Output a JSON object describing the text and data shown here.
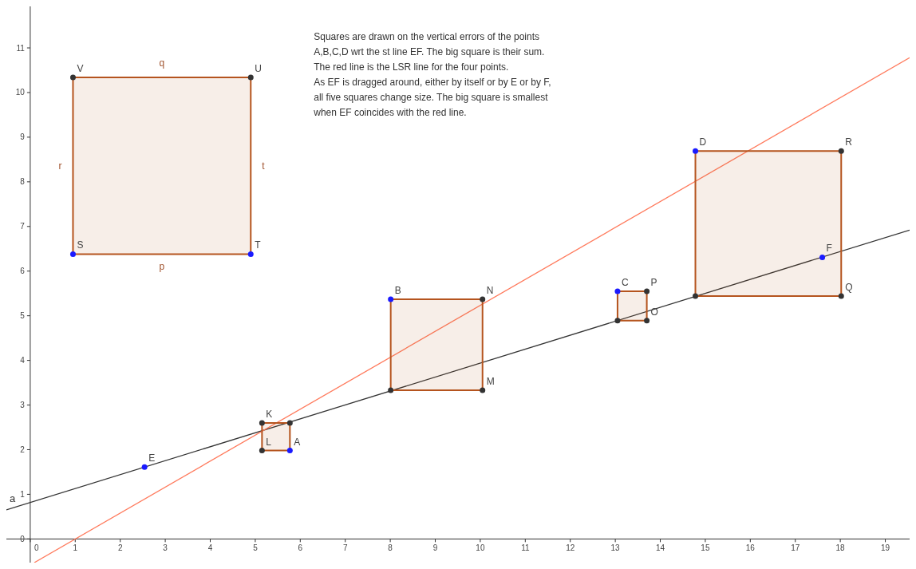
{
  "chart_data": {
    "type": "line",
    "xlim": [
      -0.53,
      19.54
    ],
    "ylim": [
      -0.53,
      11.93
    ],
    "xticks": [
      0,
      1,
      2,
      3,
      4,
      5,
      6,
      7,
      8,
      9,
      10,
      11,
      12,
      13,
      14,
      15,
      16,
      17,
      18,
      19
    ],
    "yticks": [
      0,
      1,
      2,
      3,
      4,
      5,
      6,
      7,
      8,
      9,
      10,
      11
    ],
    "line_style": "solid",
    "series": [
      {
        "name": "a",
        "color": "#333333",
        "x": [
          -0.53,
          19.54
        ],
        "values": [
          0.65,
          6.92
        ]
      },
      {
        "type": "line",
        "color": "#ff7a5c",
        "x": [
          0.09,
          19.54
        ],
        "values": [
          -0.53,
          10.78
        ]
      },
      {
        "type": "area",
        "color": "#b5541e",
        "x": [
          5.15,
          5.77,
          5.77,
          5.15,
          5.15
        ],
        "values": [
          2.6,
          2.6,
          1.98,
          1.98,
          2.6
        ]
      },
      {
        "type": "area",
        "color": "#b5541e",
        "x": [
          8.01,
          10.05,
          10.05,
          8.01,
          8.01
        ],
        "values": [
          5.37,
          5.37,
          3.33,
          3.33,
          5.37
        ]
      },
      {
        "type": "area",
        "color": "#b5541e",
        "x": [
          13.05,
          13.7,
          13.7,
          13.05,
          13.05
        ],
        "values": [
          5.55,
          5.55,
          4.89,
          4.89,
          5.55
        ]
      },
      {
        "type": "area",
        "color": "#b5541e",
        "x": [
          14.78,
          18.02,
          18.02,
          14.78,
          14.78
        ],
        "values": [
          8.69,
          8.69,
          5.44,
          5.44,
          8.69
        ]
      },
      {
        "type": "area",
        "color": "#b5541e",
        "x": [
          0.95,
          4.9,
          4.9,
          0.95,
          0.95
        ],
        "values": [
          10.34,
          10.34,
          6.38,
          6.38,
          10.34
        ]
      },
      {
        "type": "scatter",
        "marker": "circle",
        "x": [
          5.77,
          8.01,
          13.05,
          14.78,
          2.54,
          17.6,
          0.95,
          4.9,
          5.15,
          5.77,
          5.15,
          10.05,
          10.05,
          8.01,
          13.7,
          13.7,
          13.05,
          18.02,
          18.02,
          14.78,
          0.95,
          4.9
        ],
        "values": [
          1.98,
          5.37,
          5.55,
          8.69,
          1.61,
          6.31,
          6.38,
          6.38,
          2.6,
          2.6,
          1.98,
          5.37,
          3.33,
          3.33,
          5.55,
          4.89,
          4.89,
          8.69,
          5.44,
          5.44,
          10.34,
          10.34
        ],
        "colors": [
          "#1a1aff",
          "#1a1aff",
          "#1a1aff",
          "#1a1aff",
          "#1a1aff",
          "#1a1aff",
          "#1a1aff",
          "#1a1aff",
          "#333333",
          "#333333",
          "#333333",
          "#333333",
          "#333333",
          "#333333",
          "#333333",
          "#333333",
          "#333333",
          "#333333",
          "#333333",
          "#333333",
          "#333333",
          "#333333"
        ]
      }
    ],
    "annotations": [
      "Squares are drawn on the vertical errors of the points\nA,B,C,D wrt the st line EF. The big square is their sum.\nThe red line is the LSR line for the four points.\nAs EF is dragged around, either by itself or by E or by F,\nall five squares change size. The big square is smallest\nwhen EF coincides with the red line.",
      {
        "text": "A",
        "x": 5.77,
        "y": 1.98
      },
      {
        "text": "B",
        "x": 8.01,
        "y": 5.37
      },
      {
        "text": "C",
        "x": 13.05,
        "y": 5.55
      },
      {
        "text": "D",
        "x": 14.78,
        "y": 8.69
      },
      {
        "text": "E",
        "x": 2.54,
        "y": 1.61
      },
      {
        "text": "F",
        "x": 17.6,
        "y": 6.31
      },
      {
        "text": "S",
        "x": 0.95,
        "y": 6.38
      },
      {
        "text": "T",
        "x": 4.9,
        "y": 6.38
      },
      {
        "text": "K",
        "x": 5.15,
        "y": 2.6
      },
      {
        "text": "L",
        "x": 5.15,
        "y": 1.98
      },
      {
        "text": "N",
        "x": 10.05,
        "y": 5.37
      },
      {
        "text": "M",
        "x": 10.05,
        "y": 3.33
      },
      {
        "text": "P",
        "x": 13.7,
        "y": 5.55
      },
      {
        "text": "O",
        "x": 13.7,
        "y": 4.89
      },
      {
        "text": "R",
        "x": 18.02,
        "y": 8.69
      },
      {
        "text": "Q",
        "x": 18.02,
        "y": 5.44
      },
      {
        "text": "V",
        "x": 0.95,
        "y": 10.34
      },
      {
        "text": "U",
        "x": 4.9,
        "y": 10.34
      },
      "q",
      "r",
      "t",
      "p"
    ]
  }
}
